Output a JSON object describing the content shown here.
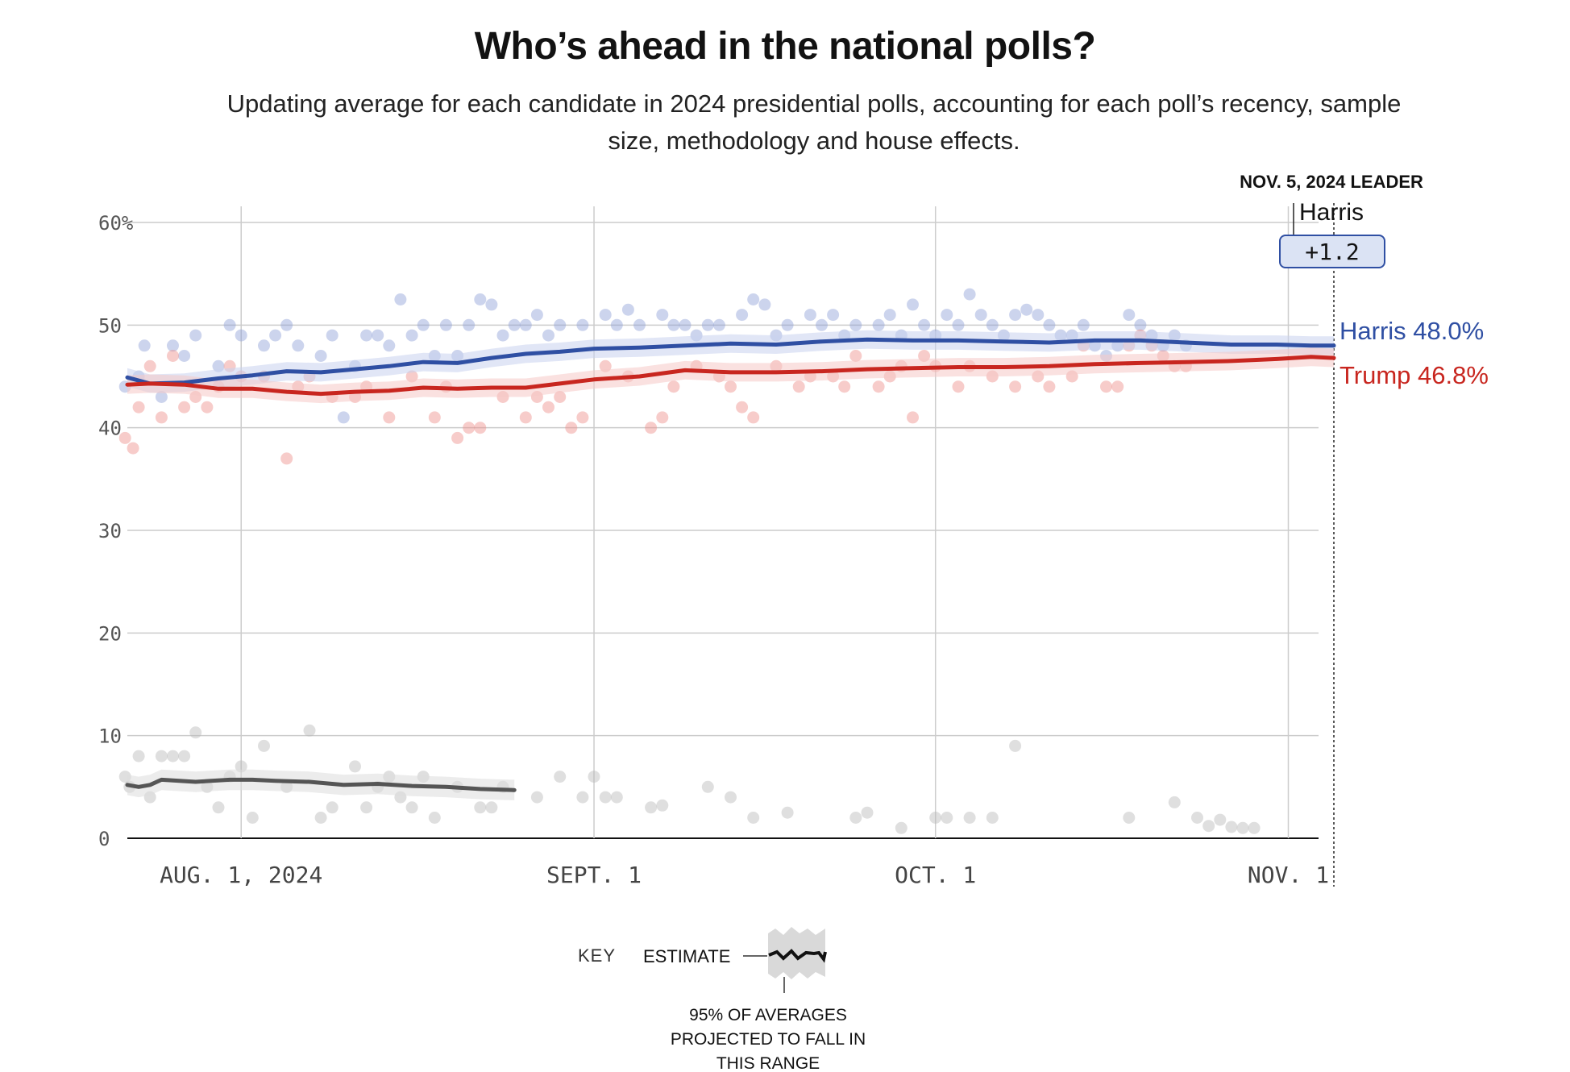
{
  "header": {
    "title": "Who’s ahead in the national polls?",
    "subtitle": "Updating average for each candidate in 2024 presidential polls, accounting for each poll’s recency, sample size, methodology and house effects."
  },
  "leader": {
    "heading": "NOV. 5, 2024 LEADER",
    "name": "Harris",
    "margin": "+1.2"
  },
  "key": {
    "label": "KEY",
    "estimate": "ESTIMATE",
    "note_lines": [
      "95% OF AVERAGES",
      "PROJECTED TO FALL IN",
      "THIS RANGE"
    ]
  },
  "colors": {
    "harris": "#2f4fa3",
    "trump": "#c8261f",
    "other": "#555555",
    "leader_box": "#dbe3f4"
  },
  "chart_data": {
    "type": "line",
    "ylim": [
      0,
      60
    ],
    "y_ticks": [
      "60%",
      "50",
      "40",
      "30",
      "20",
      "10",
      "0"
    ],
    "x_domain": [
      "2024-07-22",
      "2024-11-05"
    ],
    "x_ticks": [
      {
        "date": "2024-08-01",
        "label": "AUG. 1, 2024"
      },
      {
        "date": "2024-09-01",
        "label": "SEPT. 1"
      },
      {
        "date": "2024-10-01",
        "label": "OCT. 1"
      },
      {
        "date": "2024-11-01",
        "label": "NOV. 1"
      }
    ],
    "grid": true,
    "series": [
      {
        "name": "Harris",
        "end_label": "Harris 48.0%",
        "color": "#2f4fa3",
        "x": [
          "2024-07-22",
          "2024-07-24",
          "2024-07-27",
          "2024-07-30",
          "2024-08-02",
          "2024-08-05",
          "2024-08-08",
          "2024-08-11",
          "2024-08-14",
          "2024-08-17",
          "2024-08-20",
          "2024-08-23",
          "2024-08-26",
          "2024-08-29",
          "2024-09-01",
          "2024-09-05",
          "2024-09-09",
          "2024-09-13",
          "2024-09-17",
          "2024-09-21",
          "2024-09-25",
          "2024-09-29",
          "2024-10-03",
          "2024-10-07",
          "2024-10-11",
          "2024-10-15",
          "2024-10-19",
          "2024-10-23",
          "2024-10-27",
          "2024-10-31",
          "2024-11-03",
          "2024-11-05"
        ],
        "y": [
          44.9,
          44.3,
          44.4,
          44.8,
          45.1,
          45.5,
          45.4,
          45.7,
          46.0,
          46.4,
          46.3,
          46.8,
          47.2,
          47.4,
          47.7,
          47.8,
          48.0,
          48.2,
          48.1,
          48.4,
          48.6,
          48.5,
          48.5,
          48.4,
          48.3,
          48.5,
          48.5,
          48.3,
          48.1,
          48.1,
          48.0,
          48.0
        ],
        "band": 0.9,
        "points": [
          [
            -0.2,
            44
          ],
          [
            1,
            45
          ],
          [
            1.5,
            48
          ],
          [
            3,
            43
          ],
          [
            4,
            48
          ],
          [
            5,
            47
          ],
          [
            6,
            49
          ],
          [
            8,
            46
          ],
          [
            9,
            50
          ],
          [
            10,
            49
          ],
          [
            12,
            48
          ],
          [
            13,
            49
          ],
          [
            14,
            50
          ],
          [
            15,
            48
          ],
          [
            17,
            47
          ],
          [
            18,
            49
          ],
          [
            19,
            41
          ],
          [
            20,
            46
          ],
          [
            21,
            49
          ],
          [
            22,
            49
          ],
          [
            23,
            48
          ],
          [
            24,
            52.5
          ],
          [
            25,
            49
          ],
          [
            26,
            50
          ],
          [
            27,
            47
          ],
          [
            28,
            50
          ],
          [
            29,
            47
          ],
          [
            30,
            50
          ],
          [
            31,
            52.5
          ],
          [
            32,
            52
          ],
          [
            33,
            49
          ],
          [
            34,
            50
          ],
          [
            35,
            50
          ],
          [
            36,
            51
          ],
          [
            37,
            49
          ],
          [
            38,
            50
          ],
          [
            40,
            50
          ],
          [
            42,
            51
          ],
          [
            43,
            50
          ],
          [
            44,
            51.5
          ],
          [
            45,
            50
          ],
          [
            47,
            51
          ],
          [
            48,
            50
          ],
          [
            49,
            50
          ],
          [
            50,
            49
          ],
          [
            51,
            50
          ],
          [
            52,
            50
          ],
          [
            54,
            51
          ],
          [
            55,
            52.5
          ],
          [
            56,
            52
          ],
          [
            57,
            49
          ],
          [
            58,
            50
          ],
          [
            60,
            51
          ],
          [
            61,
            50
          ],
          [
            62,
            51
          ],
          [
            63,
            49
          ],
          [
            64,
            50
          ],
          [
            66,
            50
          ],
          [
            67,
            51
          ],
          [
            68,
            49
          ],
          [
            69,
            52
          ],
          [
            70,
            50
          ],
          [
            71,
            49
          ],
          [
            72,
            51
          ],
          [
            73,
            50
          ],
          [
            74,
            53
          ],
          [
            75,
            51
          ],
          [
            76,
            50
          ],
          [
            77,
            49
          ],
          [
            78,
            51
          ],
          [
            79,
            51.5
          ],
          [
            80,
            51
          ],
          [
            81,
            50
          ],
          [
            82,
            49
          ],
          [
            83,
            49
          ],
          [
            84,
            50
          ],
          [
            85,
            48
          ],
          [
            86,
            47
          ],
          [
            87,
            48
          ],
          [
            88,
            51
          ],
          [
            89,
            50
          ],
          [
            90,
            49
          ],
          [
            91,
            48
          ],
          [
            92,
            49
          ],
          [
            93,
            48
          ]
        ]
      },
      {
        "name": "Trump",
        "end_label": "Trump 46.8%",
        "color": "#c8261f",
        "x": [
          "2024-07-22",
          "2024-07-24",
          "2024-07-27",
          "2024-07-30",
          "2024-08-02",
          "2024-08-05",
          "2024-08-08",
          "2024-08-11",
          "2024-08-14",
          "2024-08-17",
          "2024-08-20",
          "2024-08-23",
          "2024-08-26",
          "2024-08-29",
          "2024-09-01",
          "2024-09-05",
          "2024-09-09",
          "2024-09-13",
          "2024-09-17",
          "2024-09-21",
          "2024-09-25",
          "2024-09-29",
          "2024-10-03",
          "2024-10-07",
          "2024-10-11",
          "2024-10-15",
          "2024-10-19",
          "2024-10-23",
          "2024-10-27",
          "2024-10-31",
          "2024-11-03",
          "2024-11-05"
        ],
        "y": [
          44.2,
          44.3,
          44.2,
          43.8,
          43.8,
          43.5,
          43.3,
          43.5,
          43.6,
          43.9,
          43.8,
          43.9,
          43.9,
          44.3,
          44.7,
          45.0,
          45.6,
          45.4,
          45.4,
          45.5,
          45.7,
          45.8,
          45.9,
          45.9,
          46.0,
          46.2,
          46.3,
          46.4,
          46.5,
          46.7,
          46.9,
          46.8
        ],
        "band": 0.9,
        "points": [
          [
            -0.2,
            39
          ],
          [
            0.5,
            38
          ],
          [
            1,
            42
          ],
          [
            2,
            46
          ],
          [
            3,
            41
          ],
          [
            4,
            47
          ],
          [
            5,
            42
          ],
          [
            6,
            43
          ],
          [
            7,
            42
          ],
          [
            8,
            44
          ],
          [
            9,
            46
          ],
          [
            10,
            45
          ],
          [
            12,
            45
          ],
          [
            14,
            37
          ],
          [
            15,
            44
          ],
          [
            16,
            45
          ],
          [
            18,
            43
          ],
          [
            20,
            43
          ],
          [
            21,
            44
          ],
          [
            23,
            41
          ],
          [
            25,
            45
          ],
          [
            27,
            41
          ],
          [
            28,
            44
          ],
          [
            29,
            39
          ],
          [
            30,
            40
          ],
          [
            31,
            40
          ],
          [
            33,
            43
          ],
          [
            35,
            41
          ],
          [
            36,
            43
          ],
          [
            37,
            42
          ],
          [
            38,
            43
          ],
          [
            39,
            40
          ],
          [
            40,
            41
          ],
          [
            42,
            46
          ],
          [
            44,
            45
          ],
          [
            46,
            40
          ],
          [
            47,
            41
          ],
          [
            48,
            44
          ],
          [
            50,
            46
          ],
          [
            52,
            45
          ],
          [
            53,
            44
          ],
          [
            54,
            42
          ],
          [
            55,
            41
          ],
          [
            57,
            46
          ],
          [
            59,
            44
          ],
          [
            60,
            45
          ],
          [
            62,
            45
          ],
          [
            63,
            44
          ],
          [
            64,
            47
          ],
          [
            66,
            44
          ],
          [
            67,
            45
          ],
          [
            68,
            46
          ],
          [
            69,
            41
          ],
          [
            70,
            47
          ],
          [
            71,
            46
          ],
          [
            73,
            44
          ],
          [
            74,
            46
          ],
          [
            76,
            45
          ],
          [
            78,
            44
          ],
          [
            80,
            45
          ],
          [
            81,
            44
          ],
          [
            83,
            45
          ],
          [
            84,
            48
          ],
          [
            86,
            44
          ],
          [
            87,
            44
          ],
          [
            88,
            48
          ],
          [
            89,
            49
          ],
          [
            90,
            48
          ],
          [
            91,
            47
          ],
          [
            92,
            46
          ],
          [
            93,
            46
          ]
        ]
      },
      {
        "name": "",
        "color": "#555555",
        "x": [
          "2024-07-22",
          "2024-07-23",
          "2024-07-24",
          "2024-07-25",
          "2024-07-28",
          "2024-07-31",
          "2024-08-02",
          "2024-08-04",
          "2024-08-07",
          "2024-08-10",
          "2024-08-13",
          "2024-08-16",
          "2024-08-19",
          "2024-08-22",
          "2024-08-25"
        ],
        "y": [
          5.2,
          5.0,
          5.2,
          5.7,
          5.5,
          5.7,
          5.7,
          5.6,
          5.5,
          5.2,
          5.3,
          5.1,
          5.0,
          4.8,
          4.7
        ],
        "band": 1.0,
        "points": [
          [
            -0.2,
            6
          ],
          [
            0.2,
            5
          ],
          [
            1,
            8
          ],
          [
            2,
            4
          ],
          [
            3,
            8
          ],
          [
            4,
            8
          ],
          [
            5,
            8
          ],
          [
            6,
            10.3
          ],
          [
            7,
            5
          ],
          [
            8,
            3
          ],
          [
            9,
            6
          ],
          [
            10,
            7
          ],
          [
            11,
            2
          ],
          [
            12,
            9
          ],
          [
            14,
            5
          ],
          [
            16,
            10.5
          ],
          [
            17,
            2
          ],
          [
            18,
            3
          ],
          [
            20,
            7
          ],
          [
            21,
            3
          ],
          [
            22,
            5
          ],
          [
            23,
            6
          ],
          [
            24,
            4
          ],
          [
            25,
            3
          ],
          [
            26,
            6
          ],
          [
            27,
            2
          ],
          [
            29,
            5
          ],
          [
            31,
            3
          ],
          [
            32,
            3
          ],
          [
            33,
            5
          ],
          [
            36,
            4
          ],
          [
            38,
            6
          ],
          [
            40,
            4
          ],
          [
            41,
            6
          ],
          [
            42,
            4
          ],
          [
            43,
            4
          ],
          [
            46,
            3
          ],
          [
            47,
            3.2
          ],
          [
            51,
            5
          ],
          [
            53,
            4
          ],
          [
            55,
            2
          ],
          [
            58,
            2.5
          ],
          [
            64,
            2
          ],
          [
            65,
            2.5
          ],
          [
            68,
            1
          ],
          [
            71,
            2
          ],
          [
            72,
            2
          ],
          [
            74,
            2
          ],
          [
            76,
            2
          ],
          [
            78,
            9
          ],
          [
            88,
            2
          ],
          [
            92,
            3.5
          ],
          [
            94,
            2
          ],
          [
            95,
            1.2
          ],
          [
            96,
            1.8
          ],
          [
            97,
            1.1
          ],
          [
            98,
            1
          ],
          [
            99,
            1
          ]
        ]
      }
    ]
  }
}
